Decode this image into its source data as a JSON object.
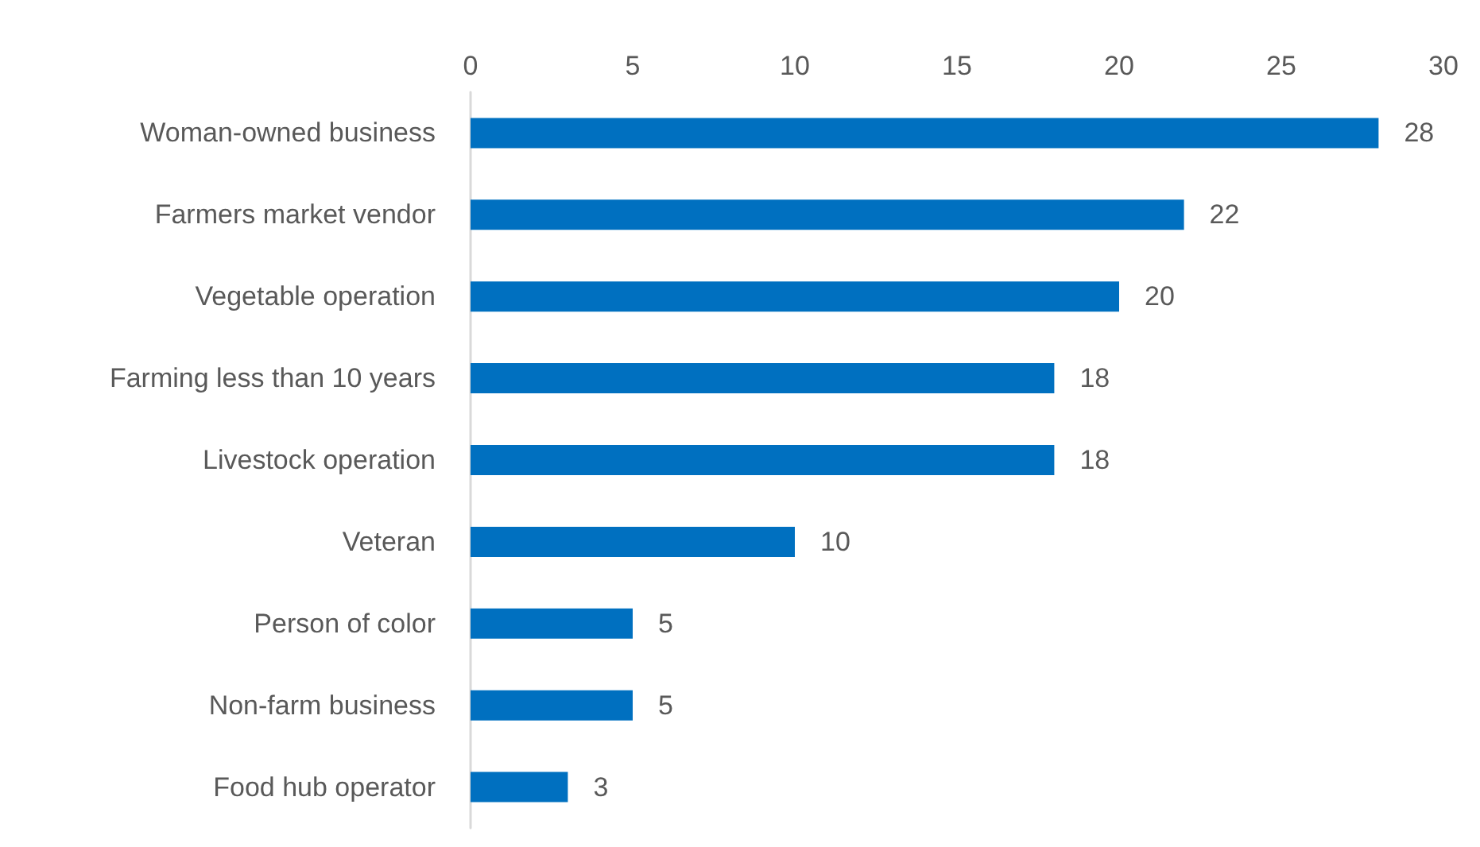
{
  "chart_data": {
    "type": "bar",
    "orientation": "horizontal",
    "categories": [
      "Woman-owned business",
      "Farmers market vendor",
      "Vegetable operation",
      "Farming less than 10 years",
      "Livestock operation",
      "Veteran",
      "Person of color",
      "Non-farm business",
      "Food hub operator"
    ],
    "values": [
      28,
      22,
      20,
      18,
      18,
      10,
      5,
      5,
      3
    ],
    "color": "#0070c0",
    "xlim": [
      0,
      30
    ],
    "xticks": [
      0,
      5,
      10,
      15,
      20,
      25,
      30
    ],
    "data_labels": true,
    "grid": false
  }
}
